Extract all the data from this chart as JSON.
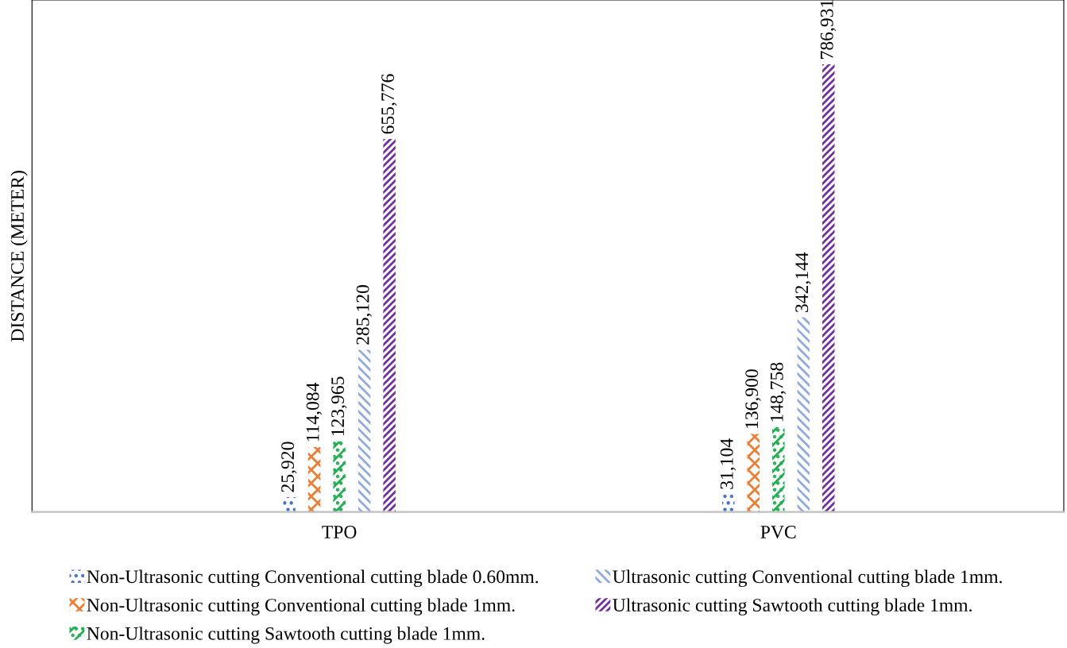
{
  "chart_data": {
    "type": "bar",
    "ylabel": "DISTANCE (METER)",
    "categories": [
      "TPO",
      "PVC"
    ],
    "ylim": [
      0,
      900000
    ],
    "tick_labels": "x",
    "legend": "bottom",
    "grid": false,
    "series": [
      {
        "name": "Non-Ultrasonic cutting Conventional cutting blade 0.60mm.",
        "color": "#4472c4",
        "values": [
          25920,
          31104
        ],
        "value_labels": [
          "25,920",
          "31,104"
        ]
      },
      {
        "name": "Non-Ultrasonic cutting Conventional cutting blade 1mm.",
        "color": "#ed7d31",
        "values": [
          114084,
          136900
        ],
        "value_labels": [
          "114,084",
          "136,900"
        ]
      },
      {
        "name": "Non-Ultrasonic cutting Sawtooth cutting blade 1mm.",
        "color": "#1fb04f",
        "values": [
          123965,
          148758
        ],
        "value_labels": [
          "123,965",
          "148,758"
        ]
      },
      {
        "name": "Ultrasonic cutting Conventional cutting blade 1mm.",
        "color": "#8faadc",
        "values": [
          285120,
          342144
        ],
        "value_labels": [
          "285,120",
          "342,144"
        ]
      },
      {
        "name": "Ultrasonic cutting Sawtooth cutting blade 1mm.",
        "color": "#7030a0",
        "values": [
          655776,
          786931
        ],
        "value_labels": [
          "655,776",
          "786,931"
        ]
      }
    ]
  }
}
